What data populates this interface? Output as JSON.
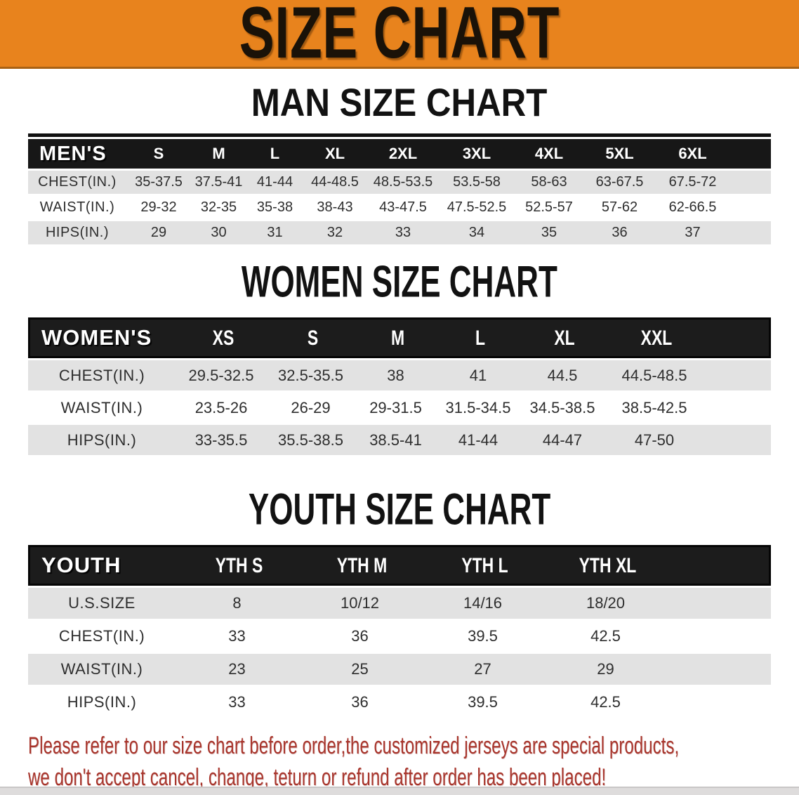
{
  "banner": {
    "title": "SIZE CHART"
  },
  "men": {
    "section_title": "MAN SIZE CHART",
    "header": [
      "MEN'S",
      "S",
      "M",
      "L",
      "XL",
      "2XL",
      "3XL",
      "4XL",
      "5XL",
      "6XL"
    ],
    "rows": [
      {
        "label": "CHEST(IN.)",
        "values": [
          "35-37.5",
          "37.5-41",
          "41-44",
          "44-48.5",
          "48.5-53.5",
          "53.5-58",
          "58-63",
          "63-67.5",
          "67.5-72"
        ]
      },
      {
        "label": "WAIST(IN.)",
        "values": [
          "29-32",
          "32-35",
          "35-38",
          "38-43",
          "43-47.5",
          "47.5-52.5",
          "52.5-57",
          "57-62",
          "62-66.5"
        ]
      },
      {
        "label": "HIPS(IN.)",
        "values": [
          "29",
          "30",
          "31",
          "32",
          "33",
          "34",
          "35",
          "36",
          "37"
        ]
      }
    ]
  },
  "women": {
    "section_title": "WOMEN SIZE CHART",
    "header": [
      "WOMEN'S",
      "XS",
      "S",
      "M",
      "L",
      "XL",
      "XXL"
    ],
    "rows": [
      {
        "label": "CHEST(IN.)",
        "values": [
          "29.5-32.5",
          "32.5-35.5",
          "38",
          "41",
          "44.5",
          "44.5-48.5"
        ]
      },
      {
        "label": "WAIST(IN.)",
        "values": [
          "23.5-26",
          "26-29",
          "29-31.5",
          "31.5-34.5",
          "34.5-38.5",
          "38.5-42.5"
        ]
      },
      {
        "label": "HIPS(IN.)",
        "values": [
          "33-35.5",
          "35.5-38.5",
          "38.5-41",
          "41-44",
          "44-47",
          "47-50"
        ]
      }
    ]
  },
  "youth": {
    "section_title": "YOUTH SIZE CHART",
    "header": [
      "YOUTH",
      "YTH S",
      "YTH M",
      "YTH L",
      "YTH XL"
    ],
    "rows": [
      {
        "label": "U.S.SIZE",
        "values": [
          "8",
          "10/12",
          "14/16",
          "18/20"
        ]
      },
      {
        "label": "CHEST(IN.)",
        "values": [
          "33",
          "36",
          "39.5",
          "42.5"
        ]
      },
      {
        "label": "WAIST(IN.)",
        "values": [
          "23",
          "25",
          "27",
          "29"
        ]
      },
      {
        "label": "HIPS(IN.)",
        "values": [
          "33",
          "36",
          "39.5",
          "42.5"
        ]
      }
    ]
  },
  "disclaimer": {
    "line1": "Please refer to our size chart before order,the customized jerseys are special products,",
    "line2": "we don't accept cancel, change, teturn or refund after order has been placed!"
  },
  "colors": {
    "banner_bg": "#E8831D",
    "header_bg": "#171717",
    "row_gray": "#E2E2E2",
    "disclaimer_red": "#A8352C"
  }
}
